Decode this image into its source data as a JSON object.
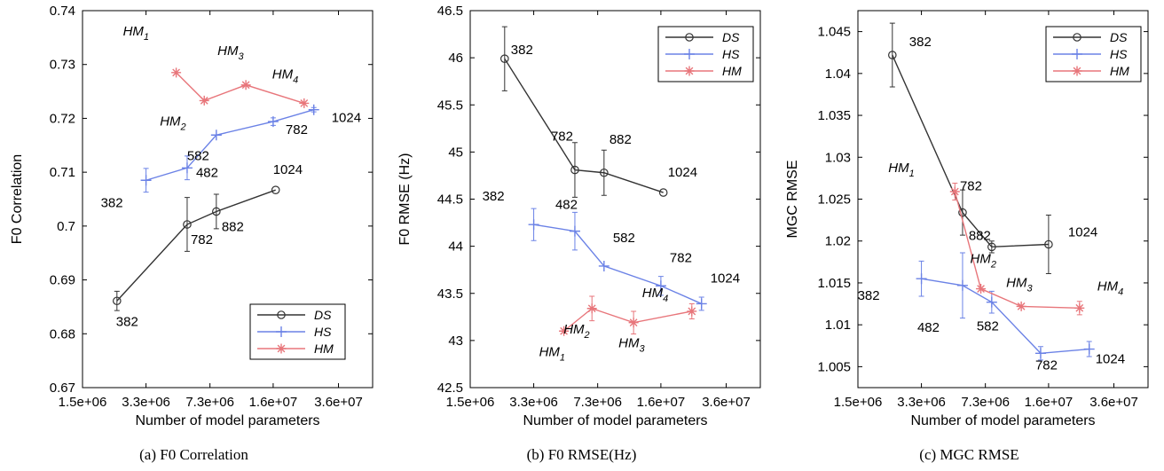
{
  "colors": {
    "DS": "#333333",
    "HS": "#6b82e6",
    "HM": "#e8767b",
    "axis": "#000000"
  },
  "charts": [
    {
      "caption": "(a) F0 Correlation",
      "chart_data": {
        "type": "line",
        "xlabel": "Number of model parameters",
        "ylabel": "F0 Correlation",
        "x_ticks": [
          "1.5e+06",
          "3.3e+06",
          "7.3e+06",
          "1.6e+07",
          "3.6e+07"
        ],
        "ylim": [
          0.67,
          0.74
        ],
        "y_ticks": [
          "0.67",
          "0.68",
          "0.69",
          "0.7",
          "0.71",
          "0.72",
          "0.73",
          "0.74"
        ],
        "legend": {
          "placement": "bottom-right",
          "entries": [
            "DS",
            "HS",
            "HM"
          ]
        },
        "series": [
          {
            "name": "DS",
            "marker": "circle",
            "points": [
              {
                "x": 2300000.0,
                "y": 0.6861,
                "err": 0.0018,
                "label": "382"
              },
              {
                "x": 5500000.0,
                "y": 0.7003,
                "err": 0.005,
                "label": "782"
              },
              {
                "x": 7900000.0,
                "y": 0.7027,
                "err": 0.0032,
                "label": "882"
              },
              {
                "x": 16500000.0,
                "y": 0.7067,
                "err": 0,
                "label": "1024"
              }
            ]
          },
          {
            "name": "HS",
            "marker": "plus",
            "points": [
              {
                "x": 3300000.0,
                "y": 0.7085,
                "err": 0.0022,
                "label": "382"
              },
              {
                "x": 5500000.0,
                "y": 0.7108,
                "err": 0.0022,
                "label": "482"
              },
              {
                "x": 7900000.0,
                "y": 0.7169,
                "err": 0,
                "label": "582"
              },
              {
                "x": 16000000.0,
                "y": 0.7194,
                "err": 0.0007,
                "label": "782"
              },
              {
                "x": 26500000.0,
                "y": 0.7216,
                "err": 0.0004,
                "label": "1024"
              }
            ]
          },
          {
            "name": "HM",
            "marker": "star",
            "points": [
              {
                "x": 4800000.0,
                "y": 0.7285,
                "err": 0,
                "label": "HM",
                "sub": "1"
              },
              {
                "x": 6800000.0,
                "y": 0.7233,
                "err": 0,
                "label": "HM",
                "sub": "2"
              },
              {
                "x": 11400000.0,
                "y": 0.7262,
                "err": 0,
                "label": "HM",
                "sub": "3"
              },
              {
                "x": 23500000.0,
                "y": 0.7228,
                "err": 0,
                "label": "HM",
                "sub": "4"
              }
            ]
          }
        ]
      }
    },
    {
      "caption": "(b) F0 RMSE(Hz)",
      "chart_data": {
        "type": "line",
        "xlabel": "Number of model parameters",
        "ylabel": "F0 RMSE (Hz)",
        "x_ticks": [
          "1.5e+06",
          "3.3e+06",
          "7.3e+06",
          "1.6e+07",
          "3.6e+07"
        ],
        "ylim": [
          42.5,
          46.5
        ],
        "y_ticks": [
          "42.5",
          "43",
          "43.5",
          "44",
          "44.5",
          "45",
          "45.5",
          "46",
          "46.5"
        ],
        "legend": {
          "placement": "top-right",
          "entries": [
            "DS",
            "HS",
            "HM"
          ]
        },
        "series": [
          {
            "name": "DS",
            "marker": "circle",
            "points": [
              {
                "x": 2300000.0,
                "y": 45.99,
                "err": 0.34,
                "label": "382"
              },
              {
                "x": 5500000.0,
                "y": 44.81,
                "err": 0.29,
                "label": "782"
              },
              {
                "x": 7900000.0,
                "y": 44.78,
                "err": 0.24,
                "label": "882"
              },
              {
                "x": 16500000.0,
                "y": 44.57,
                "err": 0,
                "label": "1024"
              }
            ]
          },
          {
            "name": "HS",
            "marker": "plus",
            "points": [
              {
                "x": 3300000.0,
                "y": 44.23,
                "err": 0.17,
                "label": "382"
              },
              {
                "x": 5500000.0,
                "y": 44.16,
                "err": 0.2,
                "label": "482"
              },
              {
                "x": 7900000.0,
                "y": 43.79,
                "err": 0,
                "label": "582"
              },
              {
                "x": 16000000.0,
                "y": 43.58,
                "err": 0.1,
                "label": "782"
              },
              {
                "x": 26500000.0,
                "y": 43.39,
                "err": 0.07,
                "label": "1024"
              }
            ]
          },
          {
            "name": "HM",
            "marker": "star",
            "points": [
              {
                "x": 4800000.0,
                "y": 43.1,
                "err": 0,
                "label": "HM",
                "sub": "1"
              },
              {
                "x": 6800000.0,
                "y": 43.34,
                "err": 0.13,
                "label": "HM",
                "sub": "2"
              },
              {
                "x": 11400000.0,
                "y": 43.19,
                "err": 0.12,
                "label": "HM",
                "sub": "3"
              },
              {
                "x": 23500000.0,
                "y": 43.31,
                "err": 0.08,
                "label": "HM",
                "sub": "4"
              }
            ]
          }
        ]
      }
    },
    {
      "caption": "(c) MGC RMSE",
      "chart_data": {
        "type": "line",
        "xlabel": "Number of model parameters",
        "ylabel": "MGC RMSE",
        "x_ticks": [
          "1.5e+06",
          "3.3e+06",
          "7.3e+06",
          "1.6e+07",
          "3.6e+07"
        ],
        "ylim": [
          1.0025,
          1.0475
        ],
        "y_ticks": [
          "1.005",
          "1.01",
          "1.015",
          "1.02",
          "1.025",
          "1.03",
          "1.035",
          "1.04",
          "1.045"
        ],
        "legend": {
          "placement": "top-right",
          "entries": [
            "DS",
            "HS",
            "HM"
          ]
        },
        "series": [
          {
            "name": "DS",
            "marker": "circle",
            "points": [
              {
                "x": 2300000.0,
                "y": 1.0422,
                "err": 0.0038,
                "label": "382"
              },
              {
                "x": 5500000.0,
                "y": 1.0234,
                "err": 0.0027,
                "label": "782"
              },
              {
                "x": 7900000.0,
                "y": 1.0193,
                "err": 0.0007,
                "label": "882"
              },
              {
                "x": 16000000.0,
                "y": 1.0196,
                "err": 0.0035,
                "label": "1024"
              }
            ]
          },
          {
            "name": "HS",
            "marker": "plus",
            "points": [
              {
                "x": 3300000.0,
                "y": 1.0155,
                "err": 0.0021,
                "label": "382"
              },
              {
                "x": 5500000.0,
                "y": 1.0147,
                "err": 0.0039,
                "label": "482"
              },
              {
                "x": 7900000.0,
                "y": 1.0127,
                "err": 0.0013,
                "label": "582"
              },
              {
                "x": 14500000.0,
                "y": 1.0066,
                "err": 0.0008,
                "label": "782"
              },
              {
                "x": 26500000.0,
                "y": 1.0071,
                "err": 0.0009,
                "label": "1024"
              }
            ]
          },
          {
            "name": "HM",
            "marker": "star",
            "points": [
              {
                "x": 5000000.0,
                "y": 1.0259,
                "err": 0.001,
                "label": "HM",
                "sub": "1"
              },
              {
                "x": 6900000.0,
                "y": 1.0143,
                "err": 0,
                "label": "HM",
                "sub": "2"
              },
              {
                "x": 11400000.0,
                "y": 1.0122,
                "err": 0,
                "label": "HM",
                "sub": "3"
              },
              {
                "x": 23500000.0,
                "y": 1.012,
                "err": 0.0008,
                "label": "HM",
                "sub": "4"
              }
            ]
          }
        ]
      }
    }
  ]
}
